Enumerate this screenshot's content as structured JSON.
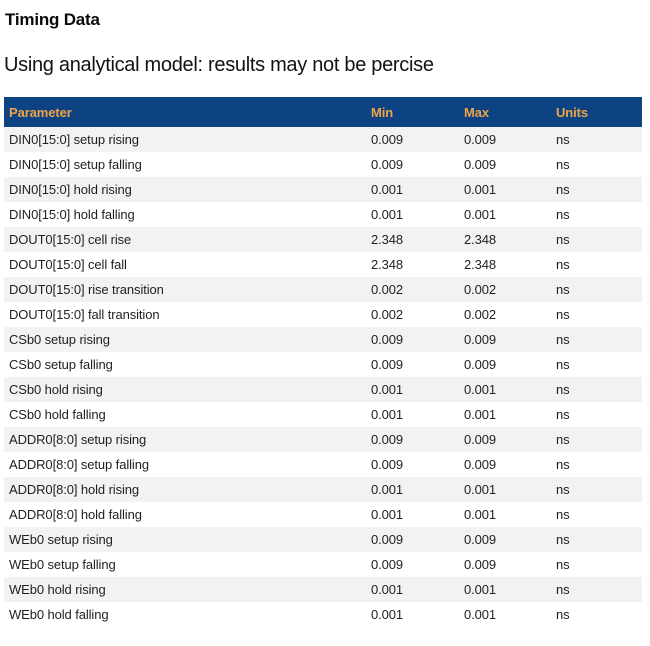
{
  "page": {
    "title": "Timing Data",
    "subtitle": "Using analytical model: results may not be percise"
  },
  "colors": {
    "header_bg": "#0e4383",
    "header_text": "#efa347",
    "row_alt_bg": "#f1f2f2",
    "row_bg": "#ffffff",
    "body_text": "#1f1f1f"
  },
  "table": {
    "columns": [
      "Parameter",
      "Min",
      "Max",
      "Units"
    ],
    "rows": [
      {
        "parameter": "DIN0[15:0] setup rising",
        "min": "0.009",
        "max": "0.009",
        "units": "ns"
      },
      {
        "parameter": "DIN0[15:0] setup falling",
        "min": "0.009",
        "max": "0.009",
        "units": "ns"
      },
      {
        "parameter": "DIN0[15:0] hold rising",
        "min": "0.001",
        "max": "0.001",
        "units": "ns"
      },
      {
        "parameter": "DIN0[15:0] hold falling",
        "min": "0.001",
        "max": "0.001",
        "units": "ns"
      },
      {
        "parameter": "DOUT0[15:0] cell rise",
        "min": "2.348",
        "max": "2.348",
        "units": "ns"
      },
      {
        "parameter": "DOUT0[15:0] cell fall",
        "min": "2.348",
        "max": "2.348",
        "units": "ns"
      },
      {
        "parameter": "DOUT0[15:0] rise transition",
        "min": "0.002",
        "max": "0.002",
        "units": "ns"
      },
      {
        "parameter": "DOUT0[15:0] fall transition",
        "min": "0.002",
        "max": "0.002",
        "units": "ns"
      },
      {
        "parameter": "CSb0 setup rising",
        "min": "0.009",
        "max": "0.009",
        "units": "ns"
      },
      {
        "parameter": "CSb0 setup falling",
        "min": "0.009",
        "max": "0.009",
        "units": "ns"
      },
      {
        "parameter": "CSb0 hold rising",
        "min": "0.001",
        "max": "0.001",
        "units": "ns"
      },
      {
        "parameter": "CSb0 hold falling",
        "min": "0.001",
        "max": "0.001",
        "units": "ns"
      },
      {
        "parameter": "ADDR0[8:0] setup rising",
        "min": "0.009",
        "max": "0.009",
        "units": "ns"
      },
      {
        "parameter": "ADDR0[8:0] setup falling",
        "min": "0.009",
        "max": "0.009",
        "units": "ns"
      },
      {
        "parameter": "ADDR0[8:0] hold rising",
        "min": "0.001",
        "max": "0.001",
        "units": "ns"
      },
      {
        "parameter": "ADDR0[8:0] hold falling",
        "min": "0.001",
        "max": "0.001",
        "units": "ns"
      },
      {
        "parameter": "WEb0 setup rising",
        "min": "0.009",
        "max": "0.009",
        "units": "ns"
      },
      {
        "parameter": "WEb0 setup falling",
        "min": "0.009",
        "max": "0.009",
        "units": "ns"
      },
      {
        "parameter": "WEb0 hold rising",
        "min": "0.001",
        "max": "0.001",
        "units": "ns"
      },
      {
        "parameter": "WEb0 hold falling",
        "min": "0.001",
        "max": "0.001",
        "units": "ns"
      }
    ]
  }
}
